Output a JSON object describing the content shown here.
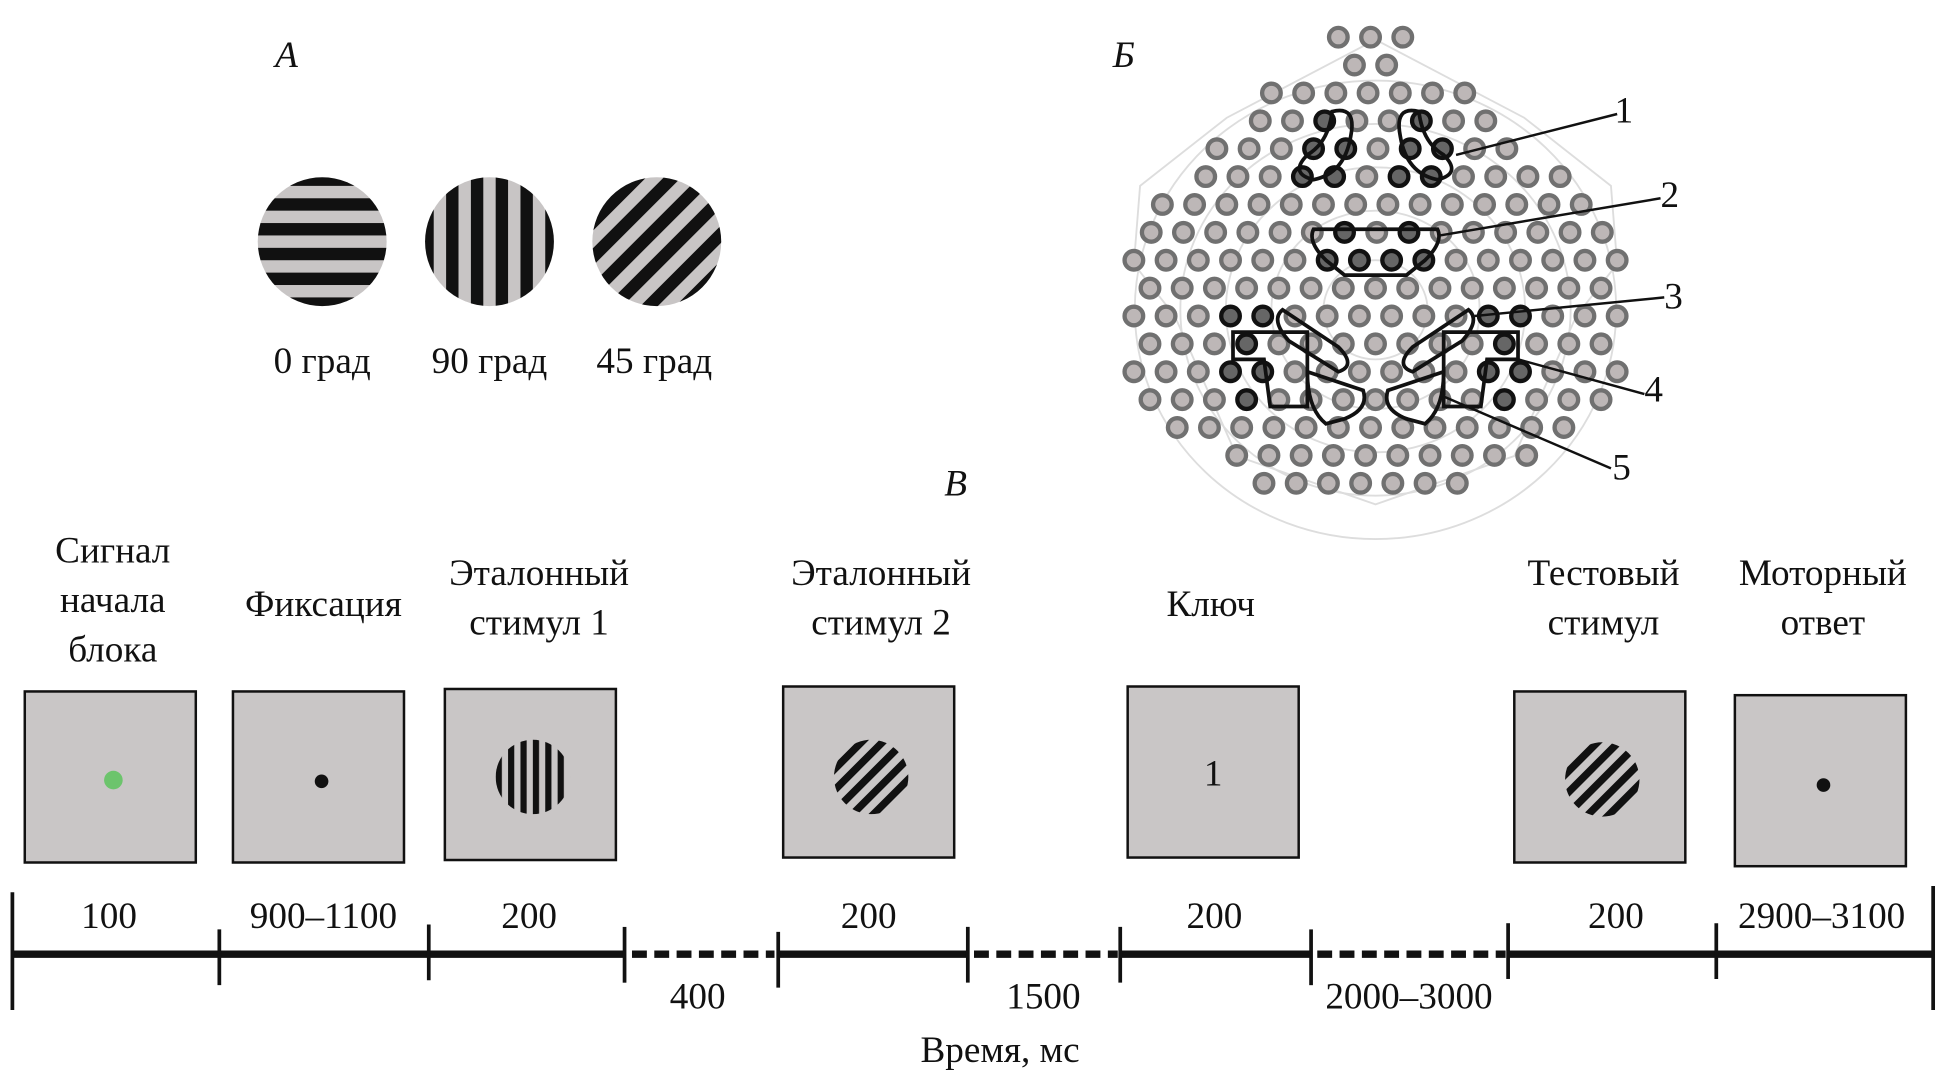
{
  "panels": {
    "a": "А",
    "b": "Б",
    "c": "В"
  },
  "gratings": [
    {
      "label": "0 град",
      "orientation": 0
    },
    {
      "label": "90 град",
      "orientation": 90
    },
    {
      "label": "45 град",
      "orientation": 45
    }
  ],
  "clusters": [
    "1",
    "2",
    "3",
    "4",
    "5"
  ],
  "stages": [
    {
      "label": "Сигнал начала блока",
      "content": "green-dot",
      "duration": "100"
    },
    {
      "label": "Фиксация",
      "content": "fixation-dot",
      "duration": "900–1100"
    },
    {
      "label": "Эталонный стимул 1",
      "content": "grating-90",
      "duration": "200"
    },
    {
      "label": "Эталонный стимул 2",
      "content": "grating-45",
      "duration": "200"
    },
    {
      "label": "Ключ",
      "content": "1",
      "duration": "200"
    },
    {
      "label": "Тестовый стимул",
      "content": "grating-45",
      "duration": "200"
    },
    {
      "label": "Моторный ответ",
      "content": "fixation-dot",
      "duration": "2900–3100"
    }
  ],
  "gaps": [
    "400",
    "1500",
    "2000–3000"
  ],
  "axis_label": "Время, мс",
  "colors": {
    "screen": "#c9c6c6",
    "stripe_light": "#c8c5c5",
    "signal": "#6cc46c",
    "electrode": "#bdb7b7",
    "electrode_ring": "#707070"
  }
}
